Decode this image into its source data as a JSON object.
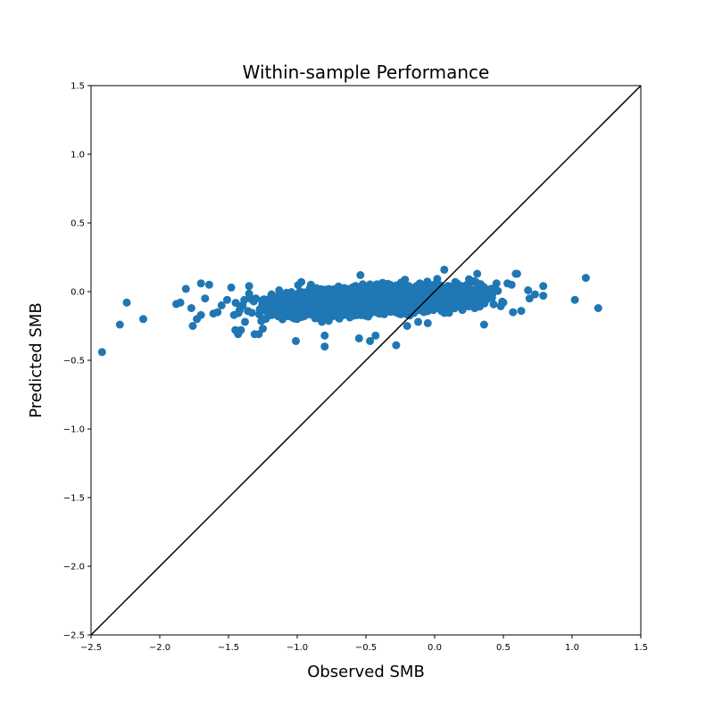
{
  "chart_data": {
    "type": "scatter",
    "title": "Within-sample Performance",
    "xlabel": "Observed SMB",
    "ylabel": "Predicted SMB",
    "xlim": [
      -2.5,
      1.5
    ],
    "ylim": [
      -2.5,
      1.5
    ],
    "xticks": [
      -2.5,
      -2.0,
      -1.5,
      -1.0,
      -0.5,
      0.0,
      0.5,
      1.0,
      1.5
    ],
    "yticks": [
      -2.5,
      -2.0,
      -1.5,
      -1.0,
      -0.5,
      0.0,
      0.5,
      1.0,
      1.5
    ],
    "xtick_labels": [
      "−2.5",
      "−2.0",
      "−1.5",
      "−1.0",
      "−0.5",
      "0.0",
      "0.5",
      "1.0",
      "1.5"
    ],
    "ytick_labels": [
      "−2.5",
      "−2.0",
      "−1.5",
      "−1.0",
      "−0.5",
      "0.0",
      "0.5",
      "1.0",
      "1.5"
    ],
    "grid": false,
    "point_color": "#1f77b4",
    "reference_line": {
      "x": [
        -2.5,
        1.5
      ],
      "y": [
        -2.5,
        1.5
      ],
      "color": "#000000"
    },
    "series": [
      {
        "points": [
          [
            -2.42,
            -0.44
          ],
          [
            -2.29,
            -0.24
          ],
          [
            -2.24,
            -0.08
          ],
          [
            -2.12,
            -0.2
          ],
          [
            -1.88,
            -0.09
          ],
          [
            -1.85,
            -0.08
          ],
          [
            -1.81,
            0.02
          ],
          [
            -1.77,
            -0.12
          ],
          [
            -1.76,
            -0.25
          ],
          [
            -1.73,
            -0.2
          ],
          [
            -1.7,
            -0.17
          ],
          [
            -1.7,
            0.06
          ],
          [
            -1.67,
            -0.05
          ],
          [
            -1.64,
            0.05
          ],
          [
            -1.61,
            -0.16
          ],
          [
            -1.58,
            -0.15
          ],
          [
            -1.55,
            -0.1
          ],
          [
            -1.51,
            -0.06
          ],
          [
            -1.48,
            0.03
          ],
          [
            -1.46,
            -0.17
          ],
          [
            -1.45,
            -0.28
          ],
          [
            -1.43,
            -0.31
          ],
          [
            -1.41,
            -0.28
          ],
          [
            -1.38,
            -0.22
          ],
          [
            -1.35,
            0.04
          ],
          [
            -1.31,
            -0.31
          ],
          [
            -1.28,
            -0.31
          ],
          [
            -1.25,
            -0.27
          ],
          [
            -1.01,
            -0.36
          ],
          [
            -0.97,
            0.07
          ],
          [
            -0.9,
            0.05
          ],
          [
            -0.82,
            -0.22
          ],
          [
            -0.8,
            -0.4
          ],
          [
            -0.8,
            -0.32
          ],
          [
            -0.55,
            -0.34
          ],
          [
            -0.54,
            0.12
          ],
          [
            -0.47,
            -0.36
          ],
          [
            -0.43,
            -0.32
          ],
          [
            -0.28,
            -0.39
          ],
          [
            -0.2,
            -0.25
          ],
          [
            -0.12,
            -0.22
          ],
          [
            -0.05,
            -0.23
          ],
          [
            0.03,
            0.05
          ],
          [
            0.07,
            0.16
          ],
          [
            0.15,
            0.07
          ],
          [
            0.25,
            0.09
          ],
          [
            0.31,
            0.13
          ],
          [
            0.36,
            -0.24
          ],
          [
            0.45,
            0.06
          ],
          [
            0.5,
            -0.08
          ],
          [
            0.53,
            0.06
          ],
          [
            0.56,
            0.05
          ],
          [
            0.57,
            -0.15
          ],
          [
            0.59,
            0.13
          ],
          [
            0.6,
            0.13
          ],
          [
            0.63,
            -0.14
          ],
          [
            0.68,
            0.01
          ],
          [
            0.69,
            -0.05
          ],
          [
            0.73,
            -0.02
          ],
          [
            0.79,
            -0.03
          ],
          [
            0.79,
            0.04
          ],
          [
            1.02,
            -0.06
          ],
          [
            1.1,
            0.1
          ],
          [
            1.19,
            -0.12
          ]
        ],
        "cluster": {
          "note": "dense cloud of observations",
          "x_range": [
            -1.5,
            0.62
          ],
          "y_center_at_x_minus_1": -0.09,
          "slope": 0.05,
          "y_spread": 0.085,
          "count": 2600
        }
      }
    ]
  }
}
